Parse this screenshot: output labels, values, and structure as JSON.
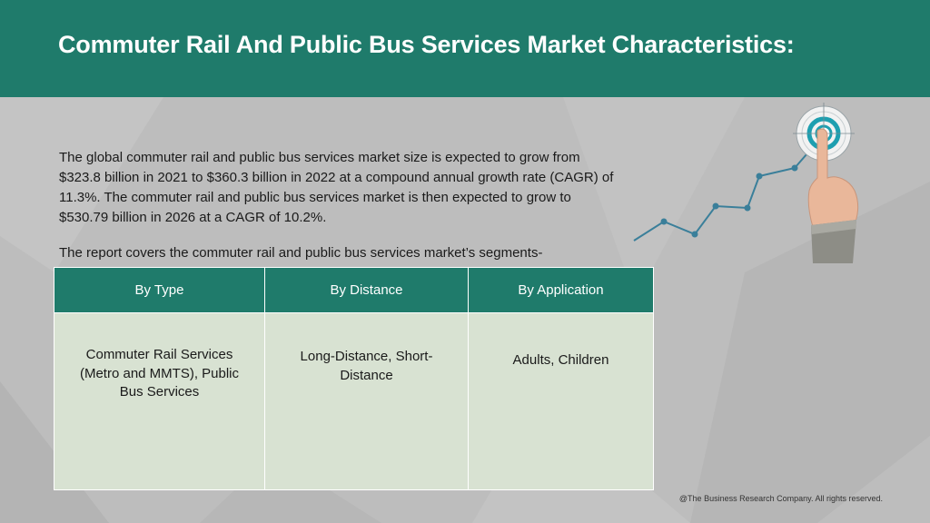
{
  "header": {
    "title": "Commuter Rail And Public Bus Services Market Characteristics:"
  },
  "body": {
    "paragraph": "The global commuter rail and public bus services market size is expected to grow from $323.8 billion in 2021 to $360.3 billion in 2022 at a compound annual growth rate (CAGR) of 11.3%. The commuter rail and public bus services market is then expected to grow to $530.79 billion in 2026 at a CAGR of 10.2%.",
    "segments_intro": "The report covers the commuter rail and public bus services market’s segments-"
  },
  "table": {
    "headers": [
      "By Type",
      "By Distance",
      "By Application"
    ],
    "cells": [
      "Commuter Rail Services (Metro and MMTS), Public Bus Services",
      "Long-Distance, Short-Distance",
      "Adults, Children"
    ]
  },
  "graphic": {
    "icon": "growth-chart-with-target-icon",
    "line_color": "#3a7f9a",
    "target_color": "#1e9fb0"
  },
  "footer": {
    "copyright": "@The Business Research Company. All rights reserved."
  },
  "colors": {
    "header_bg": "#1f7b6b",
    "table_header_bg": "#1f7b6b",
    "table_cell_bg": "#d8e2d2",
    "page_bg": "#bdbdbd"
  }
}
